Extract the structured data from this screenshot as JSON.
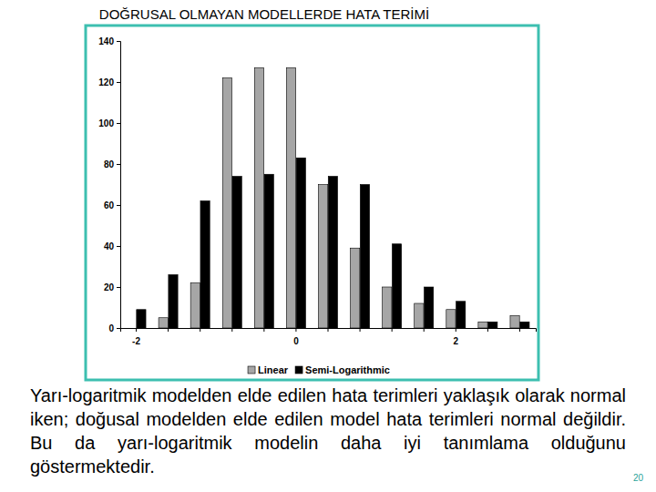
{
  "chart_data": {
    "type": "bar",
    "title": "DOĞRUSAL OLMAYAN MODELLERDE HATA TERİMİ",
    "categories": [
      "-2",
      null,
      null,
      null,
      null,
      "0",
      null,
      null,
      null,
      null,
      "2",
      null,
      null
    ],
    "series": [
      {
        "name": "Linear",
        "color": "#a6a6a6",
        "values": [
          0,
          5,
          22,
          122,
          127,
          127,
          70,
          39,
          20,
          12,
          9,
          3,
          6
        ]
      },
      {
        "name": "Semi-Logarithmic",
        "color": "#000000",
        "values": [
          9,
          26,
          62,
          74,
          75,
          83,
          74,
          70,
          41,
          20,
          13,
          3,
          3
        ]
      }
    ],
    "ylim": [
      0,
      140
    ],
    "yticks": [
      0,
      20,
      40,
      60,
      80,
      100,
      120,
      140
    ],
    "grid": false,
    "legend": "bottom",
    "annotations": [
      "Yarı-logaritmik modelden elde edilen hata terimleri yaklaşık olarak normal iken; doğusal modelden elde edilen model hata terimleri normal değildir. Bu da yarı-logaritmik modelin daha iyi tanımlama olduğunu göstermektedir.",
      "20"
    ]
  }
}
